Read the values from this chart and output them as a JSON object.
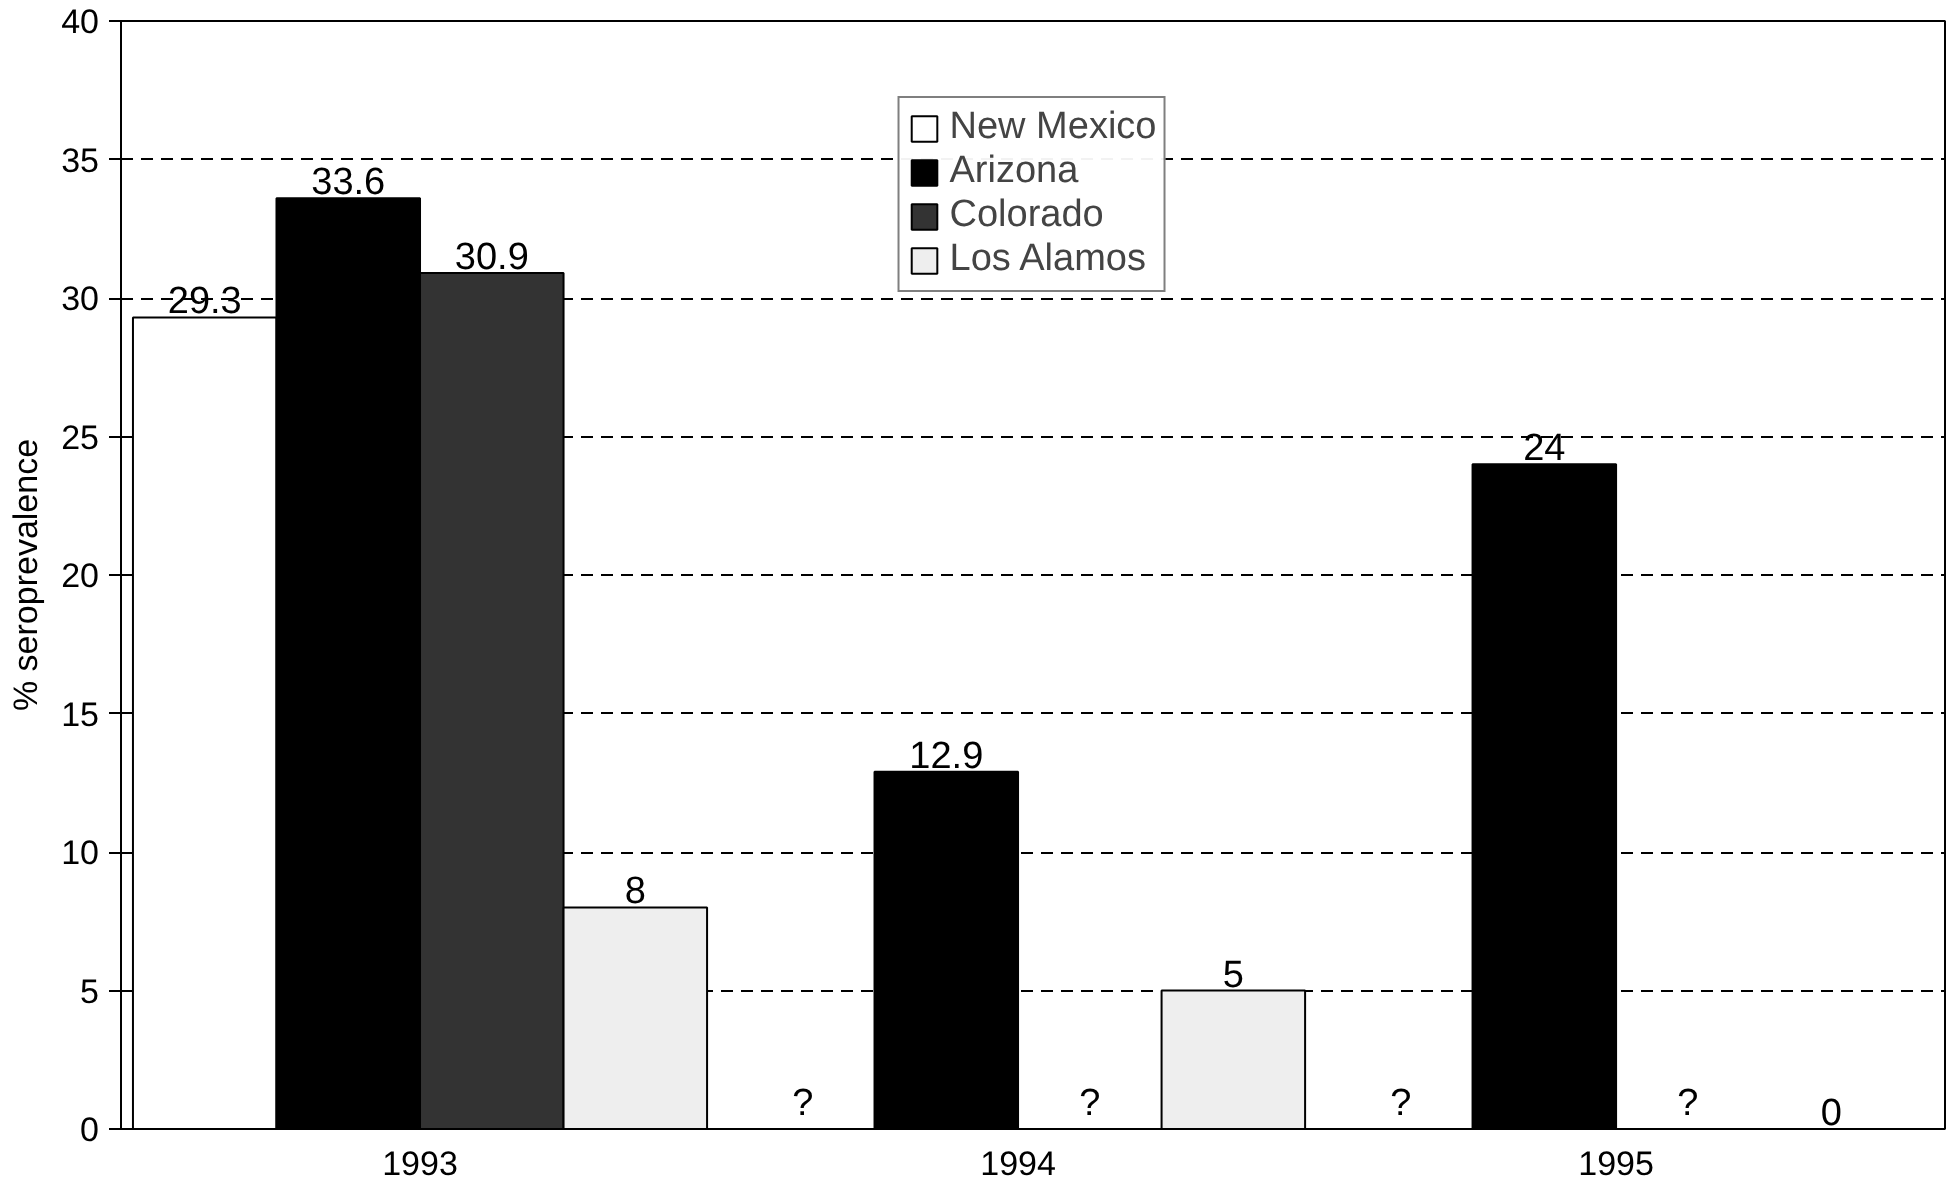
{
  "chart_data": {
    "type": "bar",
    "ylabel": "% seroprevalence",
    "categories": [
      "1993",
      "1994",
      "1995"
    ],
    "series": [
      {
        "name": "New Mexico",
        "color": "#ffffff",
        "values": [
          29.3,
          null,
          null
        ],
        "value_labels": [
          "29.3",
          "?",
          "?"
        ]
      },
      {
        "name": "Arizona",
        "color": "#000000",
        "values": [
          33.6,
          12.9,
          24
        ],
        "value_labels": [
          "33.6",
          "12.9",
          "24"
        ]
      },
      {
        "name": "Colorado",
        "color": "#333333",
        "values": [
          30.9,
          null,
          null
        ],
        "value_labels": [
          "30.9",
          "?",
          "?"
        ]
      },
      {
        "name": "Los Alamos",
        "color": "#eeeeee",
        "values": [
          8,
          5,
          0
        ],
        "value_labels": [
          "8",
          "5",
          "0"
        ]
      }
    ],
    "ylim": [
      0,
      40
    ],
    "yticks": [
      0,
      5,
      10,
      15,
      20,
      25,
      30,
      35,
      40
    ],
    "grid": "y",
    "legend": "top"
  }
}
